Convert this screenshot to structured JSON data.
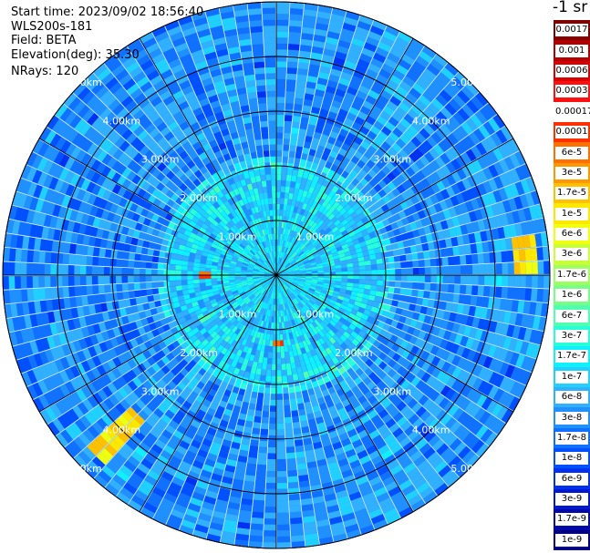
{
  "info": {
    "start_time": "Start time: 2023/09/02 18:56:40",
    "instrument": "WLS200s-181",
    "field": "Field: BETA",
    "elevation": "Elevation(deg): 35.30",
    "nrays": "NRays: 120"
  },
  "colorbar": {
    "units": "-1 sr",
    "ticks": [
      "0.0017",
      "0.001",
      "0.0006",
      "0.0003",
      "0.00017",
      "0.0001",
      "6e-5",
      "3e-5",
      "1.7e-5",
      "1e-5",
      "6e-6",
      "3e-6",
      "1.7e-6",
      "1e-6",
      "6e-7",
      "3e-7",
      "1.7e-7",
      "1e-7",
      "6e-8",
      "3e-8",
      "1.7e-8",
      "1e-8",
      "6e-9",
      "3e-9",
      "1.7e-9",
      "1e-9"
    ],
    "colors": [
      "#800000",
      "#b00000",
      "#d80000",
      "#ff1010",
      "#ffffff",
      "#ff3000",
      "#ff7000",
      "#ff9800",
      "#ffc000",
      "#ffe800",
      "#f0ff10",
      "#c8ff38",
      "#a0ff60",
      "#78ff88",
      "#50ffb0",
      "#28ffd8",
      "#10f0ff",
      "#20d0ff",
      "#30b0ff",
      "#2090ff",
      "#1070ff",
      "#0050ff",
      "#0030f0",
      "#0018d0",
      "#0008a8",
      "#000080"
    ]
  },
  "chart_data": {
    "type": "heatmap",
    "title": "",
    "field": "BETA",
    "units": "-1 sr",
    "rays": 120,
    "elevation_deg": 35.3,
    "range_rings_km": [
      1,
      2,
      3,
      4,
      5
    ],
    "range_ring_labels": [
      "1.00km",
      "2.00km",
      "3.00km",
      "4.00km",
      "5.00km"
    ],
    "max_range_km": 5.0,
    "spoke_angles_deg": [
      0,
      30,
      60,
      90,
      120,
      150,
      180,
      210,
      240,
      270,
      300,
      330
    ],
    "color_scale": "log",
    "value_range": [
      1e-09,
      0.0017
    ],
    "background_level": "3e-8",
    "high_return_features": [
      {
        "azimuth_deg": 270,
        "range_km": [
          1.2,
          1.4
        ],
        "level": "1e-4"
      },
      {
        "azimuth_deg": 178,
        "range_km": [
          1.2,
          1.3
        ],
        "level": "1e-4"
      },
      {
        "azimuth_deg": 85,
        "range_km": [
          4.3,
          4.8
        ],
        "level": "1e-5"
      },
      {
        "azimuth_deg": 225,
        "range_km": [
          3.6,
          4.7
        ],
        "level": "1e-5"
      }
    ]
  }
}
